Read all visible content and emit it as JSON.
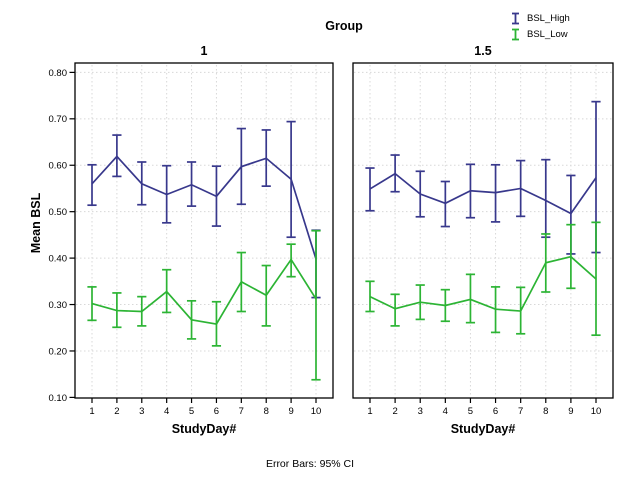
{
  "chart_data": {
    "type": "line",
    "title": "Group",
    "xlabel": "StudyDay#",
    "ylabel": "Mean BSL",
    "footnote": "Error Bars: 95% CI",
    "categories": [
      "1",
      "2",
      "3",
      "4",
      "5",
      "6",
      "7",
      "8",
      "9",
      "10"
    ],
    "ytick_labels": [
      "0.10",
      "0.20",
      "0.30",
      "0.40",
      "0.50",
      "0.60",
      "0.70",
      "0.80"
    ],
    "ylim": [
      0.1,
      0.816
    ],
    "grid": "dotted",
    "legend_position": "top-right",
    "legend": [
      {
        "name": "BSL_High",
        "color": "#38388C"
      },
      {
        "name": "BSL_Low",
        "color": "#2CB434"
      }
    ],
    "colors": {
      "grid": "#D8D8D8",
      "panel_border": "#000000",
      "text": "#000000"
    },
    "panels": [
      {
        "label": "1",
        "series": [
          {
            "name": "BSL_High",
            "color": "#38388C",
            "mean": [
              0.56,
              0.619,
              0.56,
              0.537,
              0.558,
              0.533,
              0.597,
              0.615,
              0.57,
              0.398
            ],
            "ci_low": [
              0.514,
              0.576,
              0.515,
              0.476,
              0.512,
              0.469,
              0.516,
              0.555,
              0.445,
              0.315
            ],
            "ci_high": [
              0.601,
              0.665,
              0.607,
              0.599,
              0.607,
              0.598,
              0.679,
              0.676,
              0.694,
              0.46
            ]
          },
          {
            "name": "BSL_Low",
            "color": "#2CB434",
            "mean": [
              0.302,
              0.287,
              0.285,
              0.328,
              0.267,
              0.258,
              0.349,
              0.32,
              0.397,
              0.312
            ],
            "ci_low": [
              0.266,
              0.251,
              0.254,
              0.283,
              0.226,
              0.211,
              0.285,
              0.254,
              0.36,
              0.138
            ],
            "ci_high": [
              0.338,
              0.325,
              0.317,
              0.375,
              0.308,
              0.306,
              0.412,
              0.384,
              0.43,
              0.459
            ]
          }
        ]
      },
      {
        "label": "1.5",
        "series": [
          {
            "name": "BSL_High",
            "color": "#38388C",
            "mean": [
              0.549,
              0.582,
              0.538,
              0.518,
              0.545,
              0.541,
              0.55,
              0.524,
              0.496,
              0.573
            ],
            "ci_low": [
              0.502,
              0.543,
              0.489,
              0.468,
              0.487,
              0.478,
              0.49,
              0.445,
              0.409,
              0.412
            ],
            "ci_high": [
              0.594,
              0.622,
              0.587,
              0.565,
              0.602,
              0.601,
              0.61,
              0.612,
              0.578,
              0.737
            ]
          },
          {
            "name": "BSL_Low",
            "color": "#2CB434",
            "mean": [
              0.317,
              0.291,
              0.305,
              0.298,
              0.311,
              0.29,
              0.286,
              0.39,
              0.403,
              0.355
            ],
            "ci_low": [
              0.285,
              0.254,
              0.268,
              0.264,
              0.261,
              0.24,
              0.237,
              0.327,
              0.335,
              0.234
            ],
            "ci_high": [
              0.35,
              0.322,
              0.342,
              0.332,
              0.365,
              0.338,
              0.337,
              0.452,
              0.472,
              0.477
            ]
          }
        ]
      }
    ]
  }
}
